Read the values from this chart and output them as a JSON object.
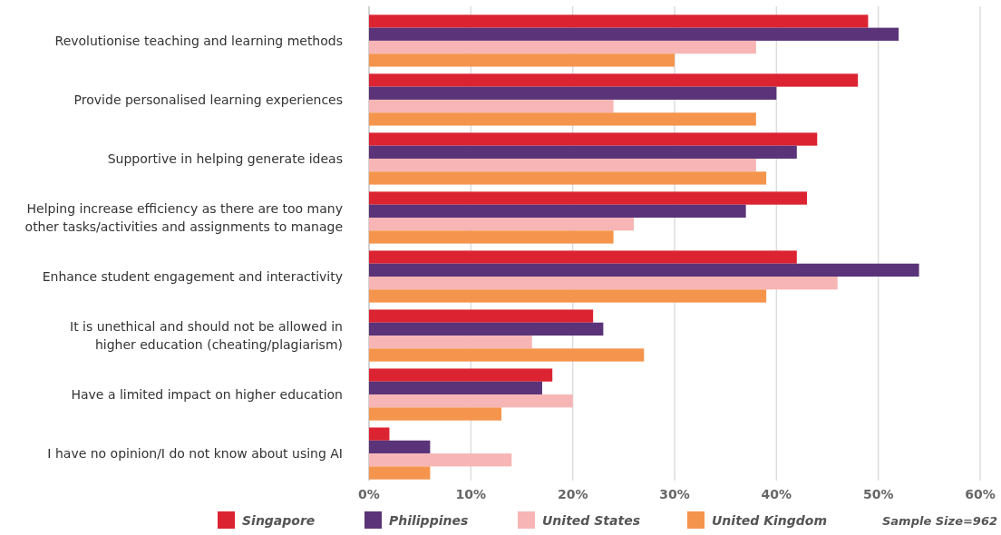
{
  "chart_data": {
    "type": "bar",
    "orientation": "horizontal",
    "categories": [
      "Revolutionise teaching and learning methods",
      "Provide personalised learning experiences",
      "Supportive in helping generate ideas",
      "Helping increase efficiency as there are too many\nother tasks/activities and assignments to manage",
      "Enhance student engagement and interactivity",
      "It is unethical and should not be allowed in\nhigher education (cheating/plagiarism)",
      "Have a limited impact on higher education",
      "I have no opinion/I do not know about using AI"
    ],
    "series": [
      {
        "name": "Singapore",
        "color": "#dc2331",
        "values": [
          49,
          48,
          44,
          43,
          42,
          22,
          18,
          2
        ]
      },
      {
        "name": "Philippines",
        "color": "#5a3378",
        "values": [
          52,
          40,
          42,
          37,
          54,
          23,
          17,
          6
        ]
      },
      {
        "name": "United States",
        "color": "#f7b5b5",
        "values": [
          38,
          24,
          38,
          26,
          46,
          16,
          20,
          14
        ]
      },
      {
        "name": "United Kingdom",
        "color": "#f5954d",
        "values": [
          30,
          38,
          39,
          24,
          39,
          27,
          13,
          6
        ]
      }
    ],
    "xlim": [
      0,
      60
    ],
    "xticks": [
      {
        "value": 0,
        "label": "0%"
      },
      {
        "value": 10,
        "label": "10%"
      },
      {
        "value": 20,
        "label": "20%"
      },
      {
        "value": 30,
        "label": "30%"
      },
      {
        "value": 40,
        "label": "40%"
      },
      {
        "value": 50,
        "label": "50%"
      },
      {
        "value": 60,
        "label": "60%"
      }
    ],
    "grid": "x",
    "legend": "bottom",
    "annotations": [
      "Sample Size=962"
    ]
  }
}
